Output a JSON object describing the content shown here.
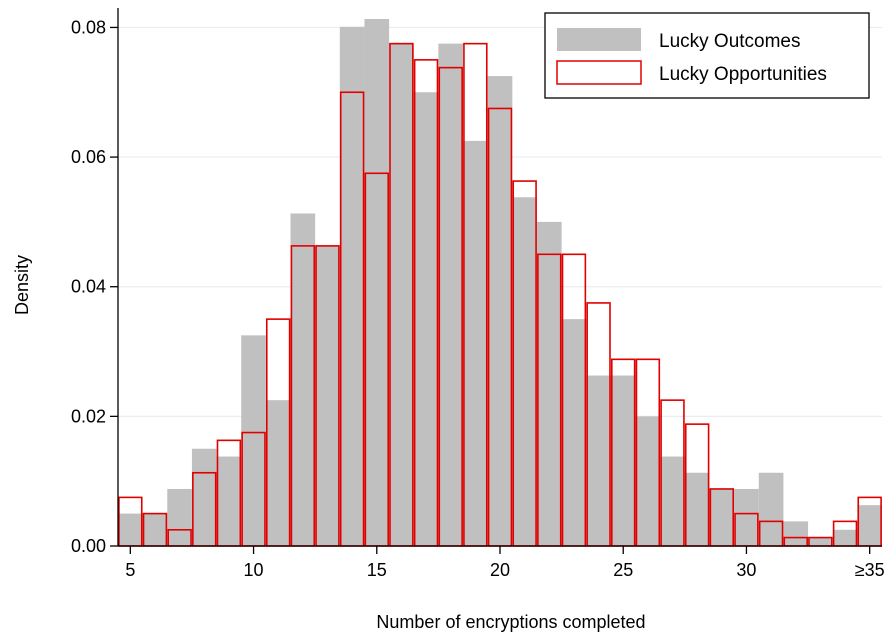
{
  "chart_data": {
    "type": "bar",
    "xlabel": "Number of encryptions completed",
    "ylabel": "Density",
    "x_range": [
      4.5,
      35.5
    ],
    "ylim": [
      0,
      0.083
    ],
    "x_ticks": [
      {
        "value": 5,
        "label": "5"
      },
      {
        "value": 10,
        "label": "10"
      },
      {
        "value": 15,
        "label": "15"
      },
      {
        "value": 20,
        "label": "20"
      },
      {
        "value": 25,
        "label": "25"
      },
      {
        "value": 30,
        "label": "30"
      },
      {
        "value": 35,
        "label": "≥35"
      }
    ],
    "y_ticks": [
      {
        "value": 0,
        "label": "0.00"
      },
      {
        "value": 0.02,
        "label": "0.02"
      },
      {
        "value": 0.04,
        "label": "0.04"
      },
      {
        "value": 0.06,
        "label": "0.06"
      },
      {
        "value": 0.08,
        "label": "0.08"
      }
    ],
    "grid": true,
    "legend_position": "top-right",
    "bins": [
      5,
      6,
      7,
      8,
      9,
      10,
      11,
      12,
      13,
      14,
      15,
      16,
      17,
      18,
      19,
      20,
      21,
      22,
      23,
      24,
      25,
      26,
      27,
      28,
      29,
      30,
      31,
      32,
      33,
      34,
      35
    ],
    "series": [
      {
        "name": "Lucky Outcomes",
        "style": "filled",
        "color": "#c0c0c0",
        "values": [
          0.005,
          0.005,
          0.0088,
          0.015,
          0.0138,
          0.0325,
          0.0225,
          0.0513,
          0.0463,
          0.0801,
          0.0813,
          0.0775,
          0.07,
          0.0775,
          0.0625,
          0.0725,
          0.0538,
          0.05,
          0.035,
          0.0263,
          0.0263,
          0.02,
          0.0138,
          0.0113,
          0.0088,
          0.0088,
          0.0113,
          0.0038,
          0.0013,
          0.0025,
          0.0063
        ]
      },
      {
        "name": "Lucky Opportunities",
        "style": "outline",
        "color": "#e00000",
        "values": [
          0.0075,
          0.005,
          0.0025,
          0.0113,
          0.0163,
          0.0175,
          0.035,
          0.0463,
          0.0463,
          0.07,
          0.0575,
          0.0775,
          0.075,
          0.0738,
          0.0775,
          0.0675,
          0.0563,
          0.045,
          0.045,
          0.0375,
          0.0288,
          0.0288,
          0.0225,
          0.0188,
          0.0088,
          0.005,
          0.0038,
          0.0013,
          0.0013,
          0.0038,
          0.0075
        ]
      }
    ]
  }
}
